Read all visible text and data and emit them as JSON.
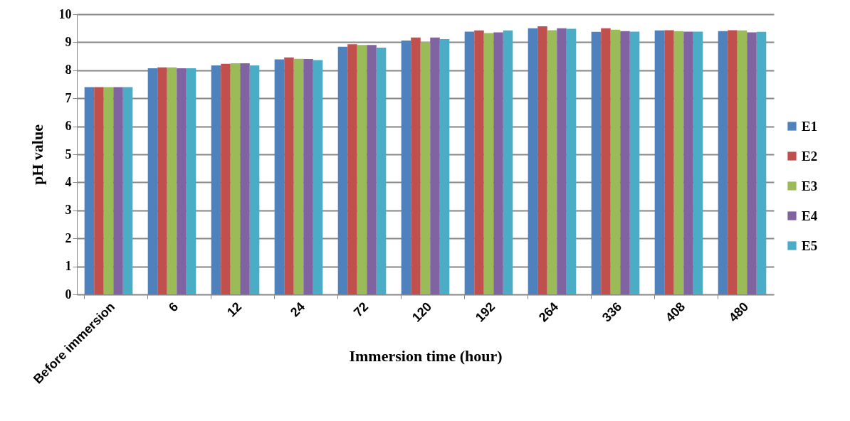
{
  "chart_data": {
    "type": "bar",
    "xlabel": "Immersion time (hour)",
    "ylabel": "pH value",
    "categories": [
      "Before immersion",
      "6",
      "12",
      "24",
      "72",
      "120",
      "192",
      "264",
      "336",
      "408",
      "480"
    ],
    "series": [
      {
        "name": "E1",
        "color": "#4f81bd",
        "values": [
          7.4,
          8.07,
          8.17,
          8.39,
          8.84,
          9.06,
          9.38,
          9.5,
          9.37,
          9.42,
          9.4
        ]
      },
      {
        "name": "E2",
        "color": "#c0504d",
        "values": [
          7.4,
          8.1,
          8.23,
          8.46,
          8.93,
          9.17,
          9.42,
          9.57,
          9.5,
          9.43,
          9.43
        ]
      },
      {
        "name": "E3",
        "color": "#9bbb59",
        "values": [
          7.4,
          8.1,
          8.25,
          8.41,
          8.9,
          9.01,
          9.33,
          9.43,
          9.45,
          9.4,
          9.42
        ]
      },
      {
        "name": "E4",
        "color": "#8064a2",
        "values": [
          7.4,
          8.07,
          8.25,
          8.4,
          8.9,
          9.17,
          9.35,
          9.5,
          9.4,
          9.38,
          9.35
        ]
      },
      {
        "name": "E5",
        "color": "#4bacc6",
        "values": [
          7.4,
          8.07,
          8.17,
          8.36,
          8.81,
          9.11,
          9.42,
          9.48,
          9.38,
          9.38,
          9.37
        ]
      }
    ],
    "ylim": [
      0,
      10
    ],
    "yticks": [
      0,
      1,
      2,
      3,
      4,
      5,
      6,
      7,
      8,
      9,
      10
    ],
    "grid": "y",
    "legend": "right"
  }
}
